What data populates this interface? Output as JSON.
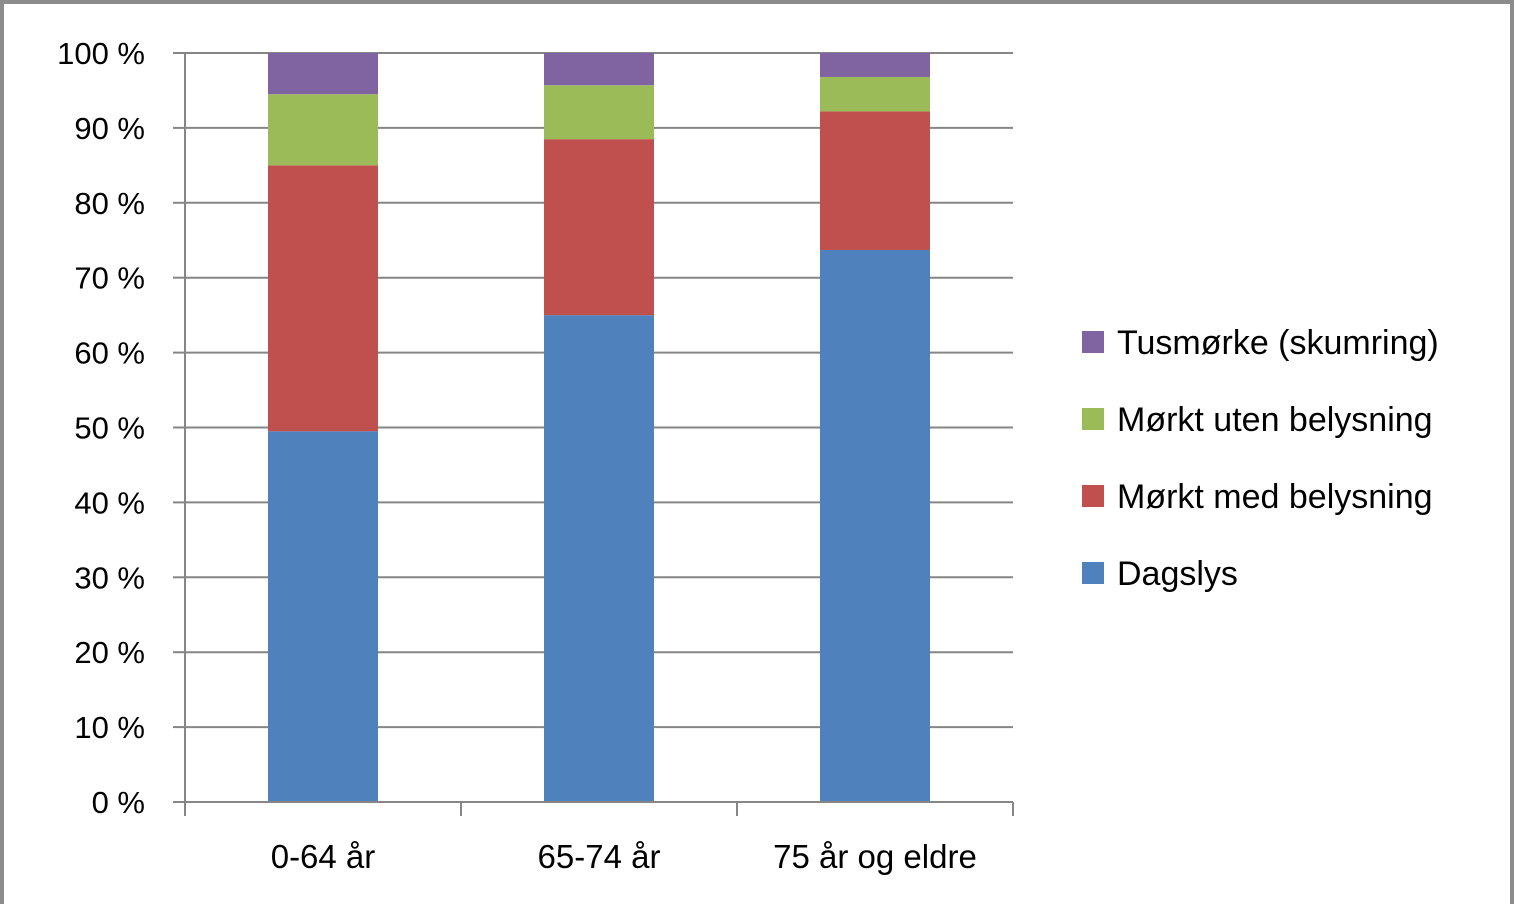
{
  "chart_data": {
    "type": "bar",
    "stacked": true,
    "percent_stacked": true,
    "categories": [
      "0-64 år",
      "65-74 år",
      "75 år og eldre"
    ],
    "series": [
      {
        "name": "Dagslys",
        "color": "#4f81bd",
        "values": [
          49.5,
          65.0,
          73.7
        ]
      },
      {
        "name": "Mørkt med belysning",
        "color": "#c0504d",
        "values": [
          35.5,
          23.5,
          18.5
        ]
      },
      {
        "name": "Mørkt uten belysning",
        "color": "#9bbb59",
        "values": [
          9.5,
          7.2,
          4.6
        ]
      },
      {
        "name": "Tusmørke (skumring)",
        "color": "#8064a2",
        "values": [
          5.5,
          4.3,
          3.2
        ]
      }
    ],
    "ylim": [
      0,
      100
    ],
    "yticks": [
      "0 %",
      "10 %",
      "20 %",
      "30 %",
      "40 %",
      "50 %",
      "60 %",
      "70 %",
      "80 %",
      "90 %",
      "100 %"
    ],
    "grid": true,
    "legend_position": "right",
    "legend_order": [
      "Tusmørke (skumring)",
      "Mørkt uten belysning",
      "Mørkt med belysning",
      "Dagslys"
    ]
  }
}
